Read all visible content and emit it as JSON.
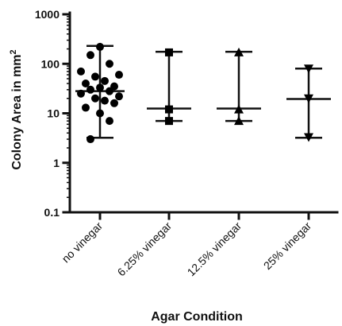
{
  "chart_data": {
    "type": "scatter",
    "title": "",
    "xlabel": "Agar Condition",
    "ylabel_main": "Colony Area in mm",
    "ylabel_sup": "2",
    "yscale": "log",
    "ylim": [
      0.1,
      1000
    ],
    "yticks": [
      {
        "value": 0.1,
        "label": "0.1"
      },
      {
        "value": 1,
        "label": "1"
      },
      {
        "value": 10,
        "label": "10"
      },
      {
        "value": 100,
        "label": "100"
      },
      {
        "value": 1000,
        "label": "1000"
      }
    ],
    "categories": [
      "no vinegar",
      "6.25% vinegar",
      "12.5% vinegar",
      "25% vinegar"
    ],
    "groups": [
      {
        "category": "no vinegar",
        "marker": "circle",
        "points": [
          220,
          150,
          100,
          70,
          60,
          55,
          45,
          40,
          35,
          33,
          30,
          28,
          25,
          22,
          20,
          18,
          16,
          13,
          10,
          7,
          3
        ],
        "median": 28,
        "range": [
          3.2,
          230
        ]
      },
      {
        "category": "6.25% vinegar",
        "marker": "square",
        "points": [
          170,
          12,
          7
        ],
        "median": 12.5,
        "range": [
          7,
          175
        ]
      },
      {
        "category": "12.5% vinegar",
        "marker": "triangle-up",
        "points": [
          170,
          12,
          7
        ],
        "median": 12.5,
        "range": [
          7,
          175
        ]
      },
      {
        "category": "25% vinegar",
        "marker": "triangle-down",
        "points": [
          80,
          20,
          3.3
        ],
        "median": 19.5,
        "range": [
          3.2,
          80
        ]
      }
    ]
  }
}
